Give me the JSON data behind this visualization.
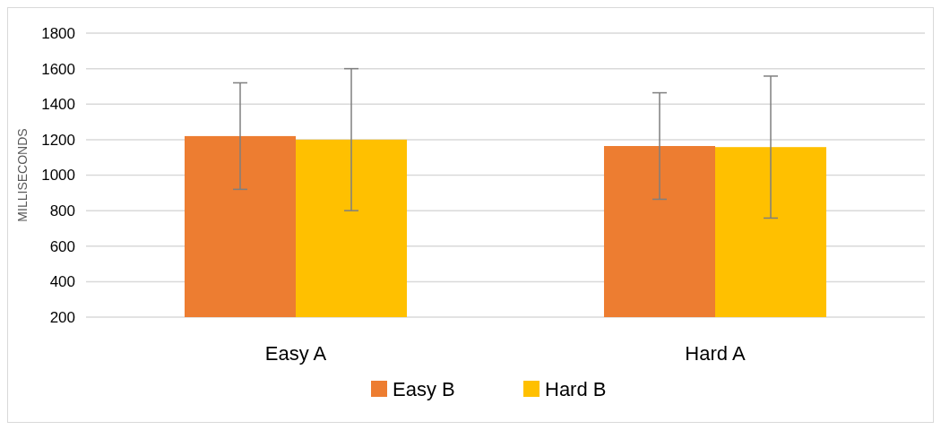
{
  "chart_data": {
    "type": "bar",
    "ylabel": "MILLISECONDS",
    "categories": [
      "Easy A",
      "Hard A"
    ],
    "series": [
      {
        "name": "Easy B",
        "color": "#ed7d31",
        "values": [
          1220,
          1164
        ],
        "errors": [
          300,
          300
        ]
      },
      {
        "name": "Hard B",
        "color": "#ffc000",
        "values": [
          1200,
          1158
        ],
        "errors": [
          400,
          400
        ]
      }
    ],
    "ylim": [
      200,
      1800
    ],
    "yticks": [
      200,
      400,
      600,
      800,
      1000,
      1200,
      1400,
      1600,
      1800
    ],
    "grid": "y",
    "legend": "bottom"
  }
}
